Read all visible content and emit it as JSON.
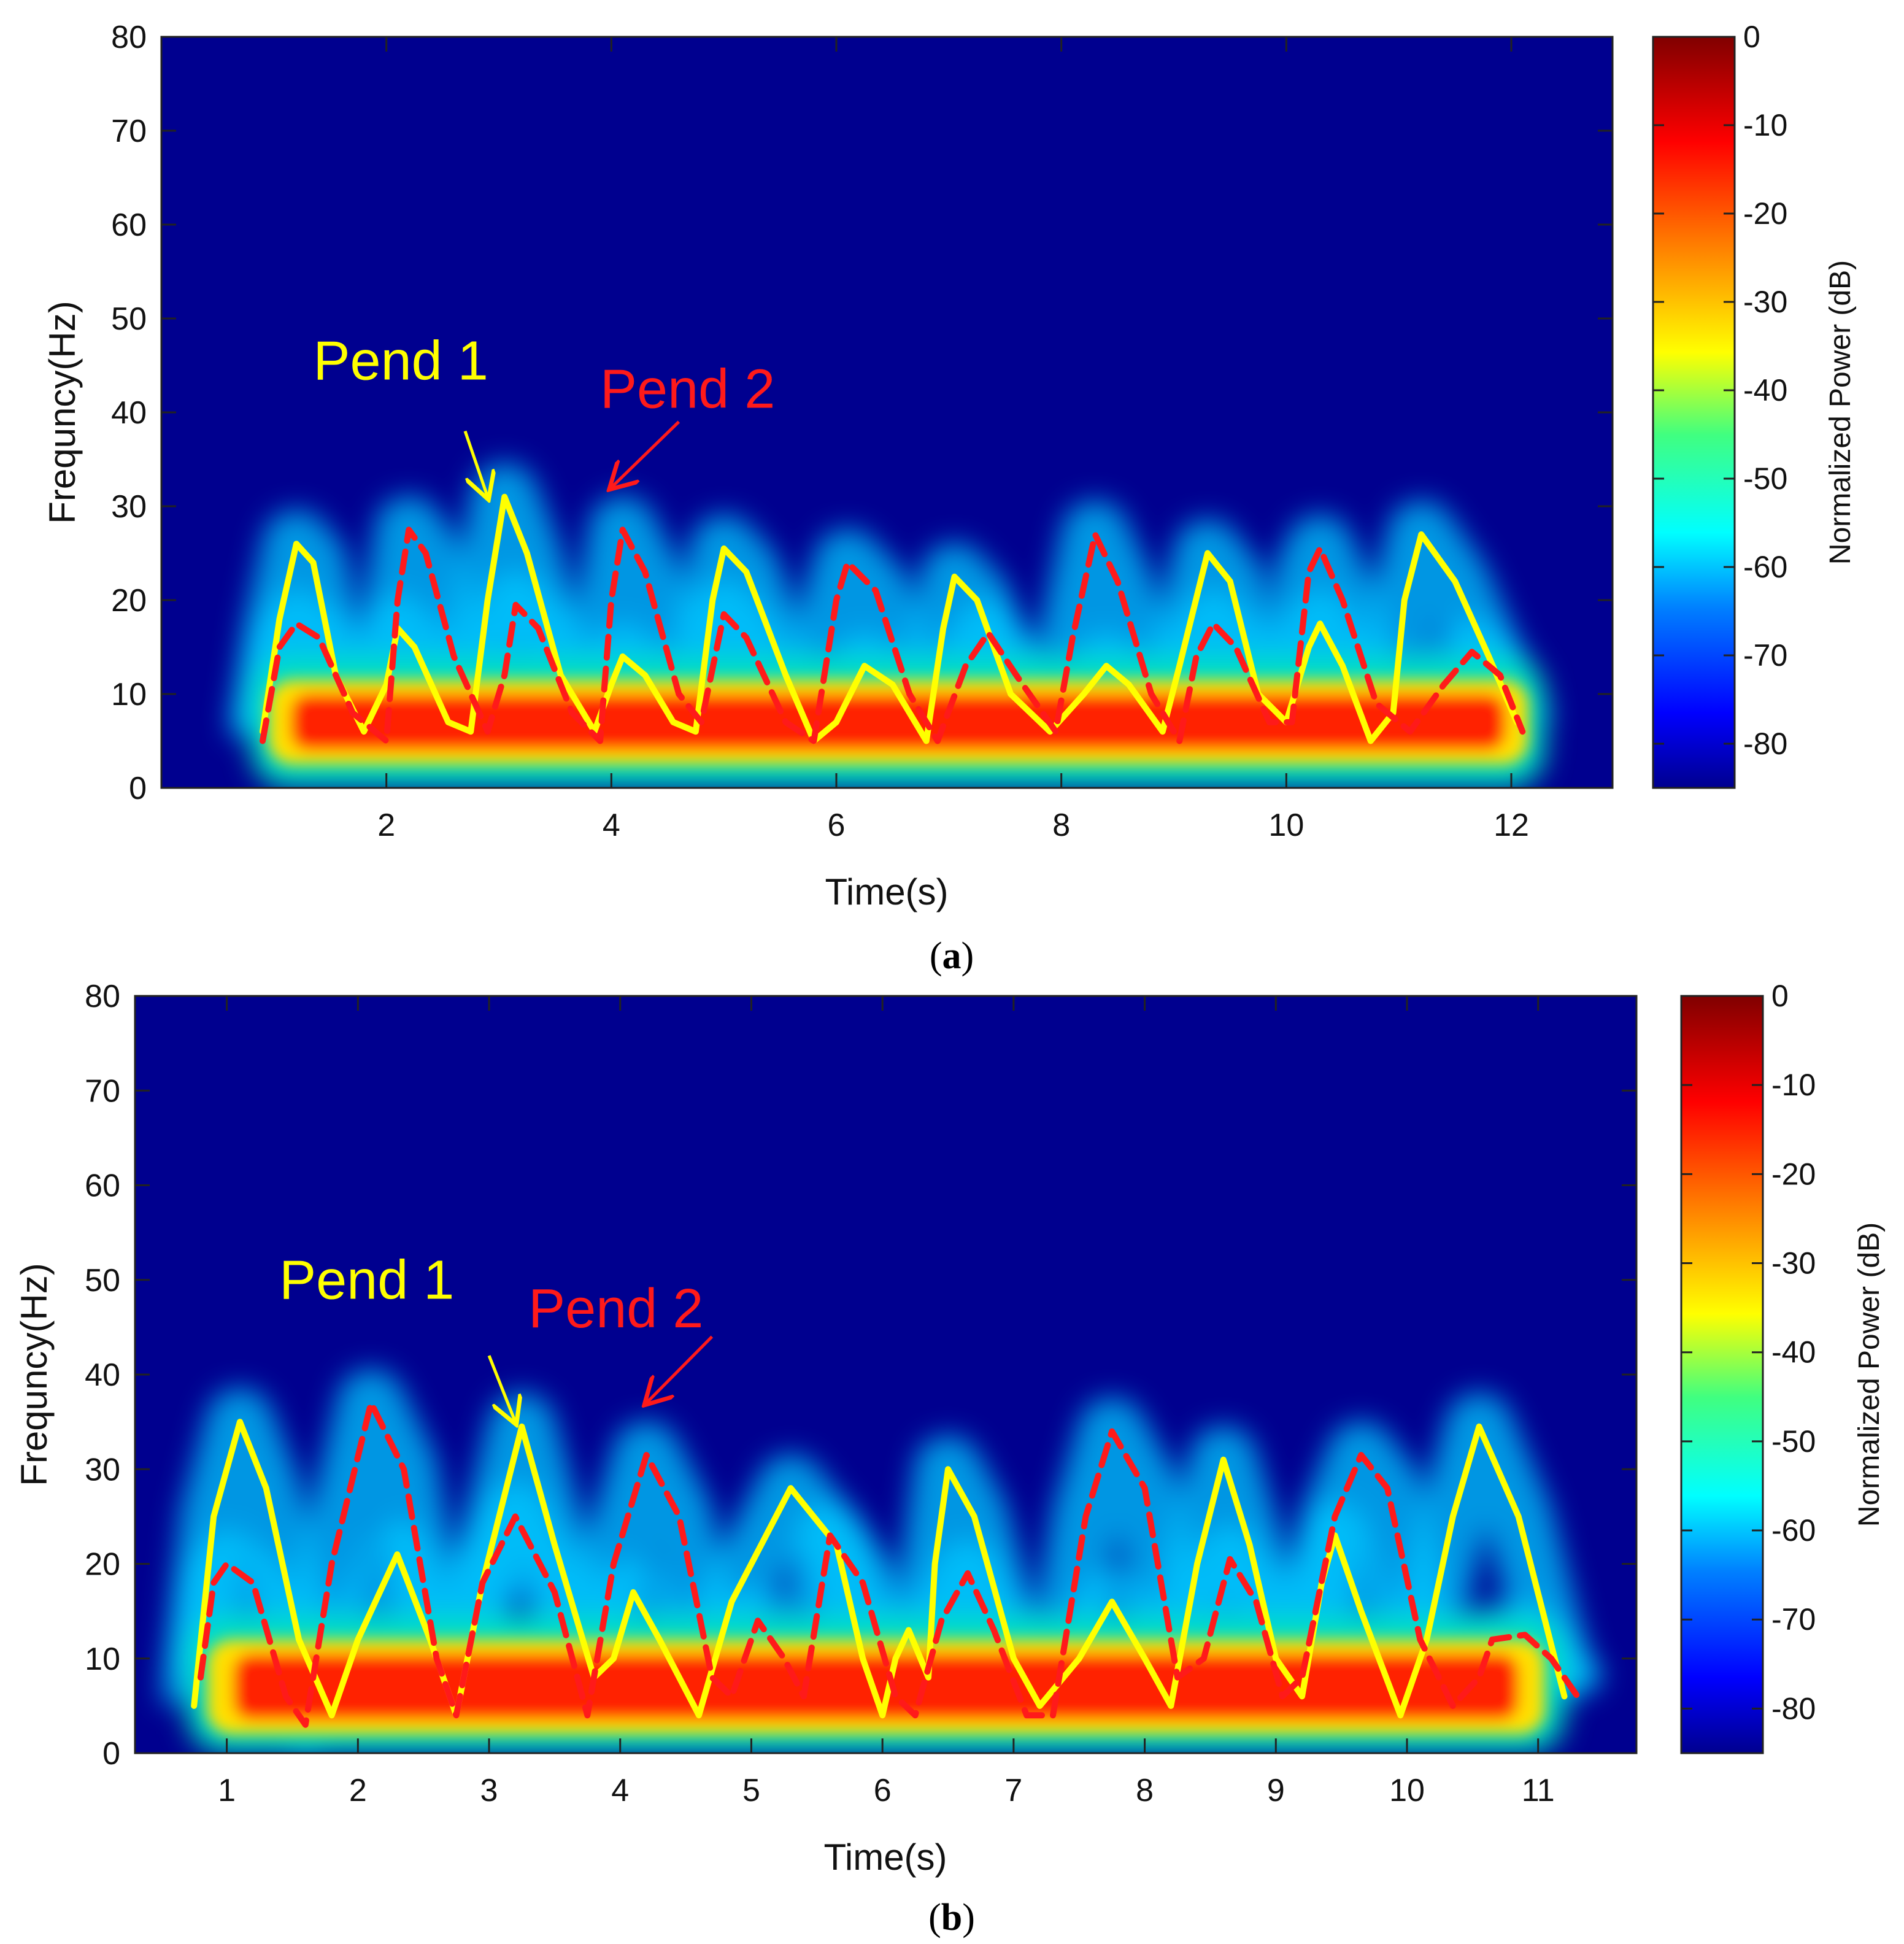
{
  "colors": {
    "background_dB": "#00008f",
    "pend1": "#ffff00",
    "pend2": "#ff1a1a",
    "colormap": [
      "#00008f",
      "#0000ff",
      "#0080ff",
      "#00ffff",
      "#80ff80",
      "#ffff00",
      "#ff8000",
      "#ff0000",
      "#800000"
    ]
  },
  "chart_data": [
    {
      "type": "heatmap",
      "panel_caption": "(a)",
      "caption_letter": "a",
      "xlabel": "Time(s)",
      "ylabel": "Frequncy(Hz)",
      "xlim": [
        0.0,
        12.9
      ],
      "ylim": [
        0,
        80
      ],
      "xticks": [
        2,
        4,
        6,
        8,
        10,
        12
      ],
      "yticks": [
        0,
        10,
        20,
        30,
        40,
        50,
        60,
        70,
        80
      ],
      "colorbar": {
        "label": "Normalized Power (dB)",
        "range": [
          -85,
          0
        ],
        "ticks": [
          0,
          -10,
          -20,
          -30,
          -40,
          -50,
          -60,
          -70,
          -80
        ]
      },
      "annotations": [
        {
          "text": "Pend 1",
          "color": "#ffff00",
          "x": 1.35,
          "y": 43.5,
          "arrow_from": [
            2.7,
            38
          ],
          "arrow_to": [
            2.9,
            31
          ]
        },
        {
          "text": "Pend 2",
          "color": "#ff1a1a",
          "x": 3.9,
          "y": 40.5,
          "arrow_from": [
            4.6,
            39
          ],
          "arrow_to": [
            4.0,
            32
          ]
        }
      ],
      "energy_band": {
        "t_start": 0.8,
        "t_end": 12.3,
        "f_center": 7,
        "f_halfwidth": 3
      },
      "series": [
        {
          "name": "Pend 1",
          "style": "solid",
          "color": "#ffff00",
          "points": [
            [
              0.9,
              6
            ],
            [
              1.05,
              18
            ],
            [
              1.2,
              26
            ],
            [
              1.35,
              24
            ],
            [
              1.55,
              12
            ],
            [
              1.8,
              6
            ],
            [
              2.0,
              11
            ],
            [
              2.1,
              17
            ],
            [
              2.25,
              15
            ],
            [
              2.55,
              7
            ],
            [
              2.75,
              6
            ],
            [
              2.9,
              20
            ],
            [
              3.05,
              31
            ],
            [
              3.25,
              25
            ],
            [
              3.55,
              12
            ],
            [
              3.85,
              6
            ],
            [
              4.0,
              11
            ],
            [
              4.1,
              14
            ],
            [
              4.3,
              12
            ],
            [
              4.55,
              7
            ],
            [
              4.75,
              6
            ],
            [
              4.9,
              20
            ],
            [
              5.0,
              25.5
            ],
            [
              5.2,
              23
            ],
            [
              5.55,
              12
            ],
            [
              5.8,
              5
            ],
            [
              6.0,
              7
            ],
            [
              6.25,
              13
            ],
            [
              6.5,
              11
            ],
            [
              6.8,
              5
            ],
            [
              6.95,
              17
            ],
            [
              7.05,
              22.5
            ],
            [
              7.25,
              20
            ],
            [
              7.55,
              10
            ],
            [
              7.9,
              6
            ],
            [
              8.2,
              10
            ],
            [
              8.4,
              13
            ],
            [
              8.6,
              11
            ],
            [
              8.9,
              6
            ],
            [
              9.05,
              13
            ],
            [
              9.3,
              25
            ],
            [
              9.5,
              22
            ],
            [
              9.75,
              10
            ],
            [
              10.0,
              7
            ],
            [
              10.2,
              15
            ],
            [
              10.3,
              17.5
            ],
            [
              10.5,
              13
            ],
            [
              10.75,
              5
            ],
            [
              10.95,
              8
            ],
            [
              11.05,
              20
            ],
            [
              11.2,
              27
            ],
            [
              11.5,
              22
            ],
            [
              11.8,
              14
            ],
            [
              12.05,
              7
            ]
          ]
        },
        {
          "name": "Pend 2",
          "style": "dashed",
          "color": "#ff1a1a",
          "points": [
            [
              0.9,
              5
            ],
            [
              1.05,
              15
            ],
            [
              1.2,
              17.5
            ],
            [
              1.4,
              16
            ],
            [
              1.7,
              8
            ],
            [
              2.0,
              5
            ],
            [
              2.1,
              20
            ],
            [
              2.2,
              27.5
            ],
            [
              2.35,
              25
            ],
            [
              2.6,
              14
            ],
            [
              2.9,
              6
            ],
            [
              3.05,
              12
            ],
            [
              3.15,
              19.5
            ],
            [
              3.35,
              17
            ],
            [
              3.65,
              8
            ],
            [
              3.9,
              5
            ],
            [
              4.0,
              20
            ],
            [
              4.1,
              27.5
            ],
            [
              4.3,
              23
            ],
            [
              4.6,
              10
            ],
            [
              4.8,
              7
            ],
            [
              5.0,
              18.5
            ],
            [
              5.2,
              16
            ],
            [
              5.55,
              7
            ],
            [
              5.8,
              5
            ],
            [
              6.0,
              20
            ],
            [
              6.1,
              24
            ],
            [
              6.35,
              21
            ],
            [
              6.65,
              10
            ],
            [
              6.9,
              5
            ],
            [
              7.15,
              13
            ],
            [
              7.35,
              16.5
            ],
            [
              7.6,
              12
            ],
            [
              7.95,
              6
            ],
            [
              8.1,
              16
            ],
            [
              8.3,
              27
            ],
            [
              8.5,
              22
            ],
            [
              8.8,
              10
            ],
            [
              9.05,
              5
            ],
            [
              9.2,
              14
            ],
            [
              9.35,
              17.5
            ],
            [
              9.55,
              15
            ],
            [
              9.85,
              7
            ],
            [
              10.05,
              7
            ],
            [
              10.2,
              23
            ],
            [
              10.3,
              25.5
            ],
            [
              10.5,
              20
            ],
            [
              10.8,
              9
            ],
            [
              11.1,
              6
            ],
            [
              11.4,
              11
            ],
            [
              11.65,
              14.5
            ],
            [
              11.9,
              12
            ],
            [
              12.1,
              6
            ]
          ]
        }
      ]
    },
    {
      "type": "heatmap",
      "panel_caption": "(b)",
      "caption_letter": "b",
      "xlabel": "Time(s)",
      "ylabel": "Frequncy(Hz)",
      "xlim": [
        0.3,
        11.75
      ],
      "ylim": [
        0,
        80
      ],
      "xticks": [
        1,
        2,
        3,
        4,
        5,
        6,
        7,
        8,
        9,
        10,
        11
      ],
      "yticks": [
        0,
        10,
        20,
        30,
        40,
        50,
        60,
        70,
        80
      ],
      "colorbar": {
        "label": "Normalized Power (dB)",
        "range": [
          -85,
          0
        ],
        "ticks": [
          0,
          -10,
          -20,
          -30,
          -40,
          -50,
          -60,
          -70,
          -80
        ]
      },
      "annotations": [
        {
          "text": "Pend 1",
          "color": "#ffff00",
          "x": 1.4,
          "y": 48,
          "arrow_from": [
            3.0,
            42
          ],
          "arrow_to": [
            3.2,
            35
          ]
        },
        {
          "text": "Pend 2",
          "color": "#ff1a1a",
          "x": 3.3,
          "y": 45,
          "arrow_from": [
            4.7,
            44
          ],
          "arrow_to": [
            4.2,
            37
          ]
        }
      ],
      "energy_band": {
        "t_start": 0.7,
        "t_end": 11.2,
        "f_center": 7,
        "f_halfwidth": 3.5
      },
      "series": [
        {
          "name": "Pend 1",
          "style": "solid",
          "color": "#ffff00",
          "points": [
            [
              0.75,
              5
            ],
            [
              0.9,
              25
            ],
            [
              1.1,
              35
            ],
            [
              1.3,
              28
            ],
            [
              1.55,
              12
            ],
            [
              1.8,
              4
            ],
            [
              2.0,
              12
            ],
            [
              2.3,
              21
            ],
            [
              2.55,
              12
            ],
            [
              2.75,
              4
            ],
            [
              2.95,
              18
            ],
            [
              3.25,
              34.5
            ],
            [
              3.5,
              22
            ],
            [
              3.8,
              8
            ],
            [
              3.95,
              10
            ],
            [
              4.1,
              17
            ],
            [
              4.3,
              12
            ],
            [
              4.6,
              4
            ],
            [
              4.85,
              16
            ],
            [
              5.3,
              28
            ],
            [
              5.65,
              22
            ],
            [
              5.85,
              10
            ],
            [
              6.0,
              4
            ],
            [
              6.1,
              10
            ],
            [
              6.2,
              13
            ],
            [
              6.35,
              8
            ],
            [
              6.4,
              20
            ],
            [
              6.5,
              30
            ],
            [
              6.7,
              25
            ],
            [
              7.0,
              10
            ],
            [
              7.2,
              5
            ],
            [
              7.5,
              10
            ],
            [
              7.75,
              16
            ],
            [
              8.0,
              10
            ],
            [
              8.2,
              5
            ],
            [
              8.4,
              20
            ],
            [
              8.6,
              31
            ],
            [
              8.8,
              22
            ],
            [
              9.0,
              10
            ],
            [
              9.2,
              6
            ],
            [
              9.35,
              18
            ],
            [
              9.45,
              23
            ],
            [
              9.65,
              15
            ],
            [
              9.95,
              4
            ],
            [
              10.15,
              12
            ],
            [
              10.35,
              25
            ],
            [
              10.55,
              34.5
            ],
            [
              10.85,
              25
            ],
            [
              11.2,
              6
            ]
          ]
        },
        {
          "name": "Pend 2",
          "style": "dashed",
          "color": "#ff1a1a",
          "points": [
            [
              0.8,
              8
            ],
            [
              0.9,
              18
            ],
            [
              1.0,
              20
            ],
            [
              1.2,
              18
            ],
            [
              1.45,
              6
            ],
            [
              1.6,
              3
            ],
            [
              1.8,
              20
            ],
            [
              2.1,
              37
            ],
            [
              2.35,
              30
            ],
            [
              2.6,
              10
            ],
            [
              2.75,
              4
            ],
            [
              2.95,
              18
            ],
            [
              3.2,
              25
            ],
            [
              3.5,
              17
            ],
            [
              3.75,
              4
            ],
            [
              3.95,
              20
            ],
            [
              4.2,
              31.5
            ],
            [
              4.45,
              25
            ],
            [
              4.7,
              8
            ],
            [
              4.85,
              6
            ],
            [
              5.05,
              14
            ],
            [
              5.25,
              10
            ],
            [
              5.4,
              6
            ],
            [
              5.6,
              23
            ],
            [
              5.85,
              18
            ],
            [
              6.1,
              6
            ],
            [
              6.25,
              4
            ],
            [
              6.45,
              14
            ],
            [
              6.65,
              19
            ],
            [
              6.85,
              13
            ],
            [
              7.1,
              4
            ],
            [
              7.3,
              4
            ],
            [
              7.55,
              25
            ],
            [
              7.75,
              34
            ],
            [
              8.0,
              28
            ],
            [
              8.25,
              8
            ],
            [
              8.45,
              10
            ],
            [
              8.65,
              20.5
            ],
            [
              8.85,
              16
            ],
            [
              9.05,
              6
            ],
            [
              9.2,
              8
            ],
            [
              9.45,
              25
            ],
            [
              9.65,
              31.5
            ],
            [
              9.85,
              28
            ],
            [
              10.1,
              12
            ],
            [
              10.35,
              5
            ],
            [
              10.55,
              8
            ],
            [
              10.65,
              12
            ],
            [
              10.9,
              12.5
            ],
            [
              11.1,
              10
            ],
            [
              11.3,
              6
            ]
          ]
        }
      ]
    }
  ]
}
